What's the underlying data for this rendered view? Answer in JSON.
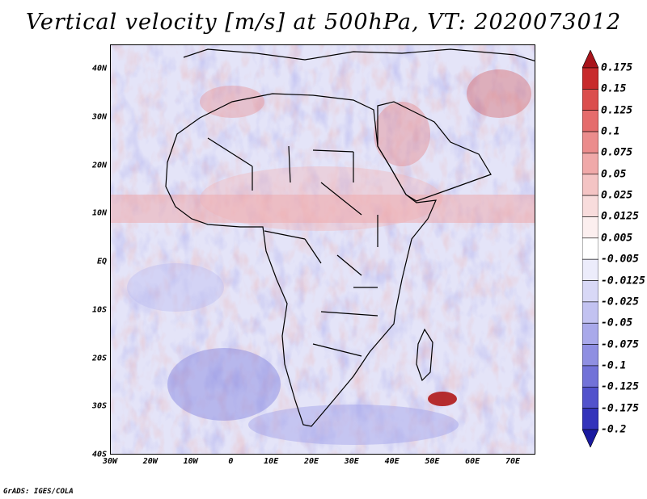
{
  "title": "Vertical velocity [m/s] at 500hPa, VT: 2020073012",
  "footer": "GrADS: IGES/COLA",
  "lat_ticks": [
    "40N",
    "30N",
    "20N",
    "10N",
    "EQ",
    "10S",
    "20S",
    "30S",
    "40S"
  ],
  "lon_ticks": [
    "30W",
    "20W",
    "10W",
    "0",
    "10E",
    "20E",
    "30E",
    "40E",
    "50E",
    "60E",
    "70E"
  ],
  "colorbar": {
    "labels": [
      "0.175",
      "0.15",
      "0.125",
      "0.1",
      "0.075",
      "0.05",
      "0.025",
      "0.0125",
      "0.005",
      "-0.005",
      "-0.0125",
      "-0.025",
      "-0.05",
      "-0.075",
      "-0.1",
      "-0.125",
      "-0.175",
      "-0.2"
    ],
    "colors": [
      "#a8141b",
      "#c82a2c",
      "#db4e4d",
      "#e56c6c",
      "#eb8c8c",
      "#f0a9a9",
      "#f4c4c4",
      "#f8dcdc",
      "#fcefef",
      "#ffffff",
      "#ececfb",
      "#d8d8f6",
      "#c2c2f1",
      "#a9a9ea",
      "#8f8fe2",
      "#7272d8",
      "#5252cc",
      "#3333bb",
      "#1a1aa0"
    ]
  },
  "colors": {
    "frame": "#000000",
    "background": "#ffffff"
  }
}
